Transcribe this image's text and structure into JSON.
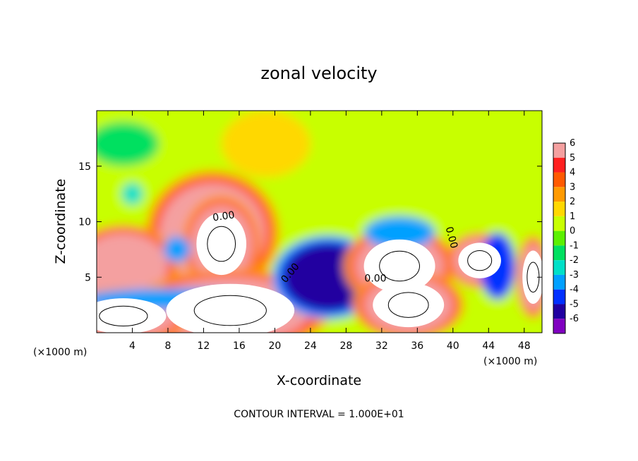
{
  "chart_data": {
    "type": "heatmap",
    "title": "zonal velocity",
    "xlabel": "X-coordinate",
    "ylabel": "Z-coordinate",
    "x_unit_note": "(×1000 m)",
    "y_unit_note": "(×1000 m)",
    "xlim": [
      0,
      50
    ],
    "ylim": [
      0,
      20
    ],
    "x_ticks": [
      4,
      8,
      12,
      16,
      20,
      24,
      28,
      32,
      36,
      40,
      44,
      48
    ],
    "y_ticks": [
      5,
      10,
      15
    ],
    "colorbar": {
      "levels": [
        6,
        5,
        4,
        3,
        2,
        1,
        0,
        -1,
        -2,
        -3,
        -4,
        -5,
        -6
      ],
      "colors": [
        "#f4a0a0",
        "#ff2020",
        "#ff5a00",
        "#ff9a00",
        "#ffd800",
        "#c8ff00",
        "#5cf000",
        "#00e060",
        "#00e0c8",
        "#00a0ff",
        "#0030ff",
        "#2000a0",
        "#8000c0"
      ]
    },
    "contour_labels": [
      "0.00",
      "0.00",
      "0.00",
      "0.00"
    ],
    "footer": "CONTOUR INTERVAL = 1.000E+01",
    "features": [
      {
        "kind": "background",
        "value": 0.8
      },
      {
        "kind": "blob",
        "cx": 13,
        "cy": 9,
        "rx": 6,
        "ry": 4.5,
        "value": 5
      },
      {
        "kind": "blob",
        "cx": 14,
        "cy": 8,
        "rx": 3.5,
        "ry": 3.5,
        "value": 7
      },
      {
        "kind": "blob",
        "cx": 3,
        "cy": 6,
        "rx": 5,
        "ry": 3,
        "value": 6
      },
      {
        "kind": "blob",
        "cx": 15,
        "cy": 2,
        "rx": 9,
        "ry": 3,
        "value": 7
      },
      {
        "kind": "blob",
        "cx": 3,
        "cy": 1.5,
        "rx": 6,
        "ry": 2,
        "value": 7
      },
      {
        "kind": "blob",
        "cx": 26,
        "cy": 5,
        "rx": 5,
        "ry": 3,
        "value": -5
      },
      {
        "kind": "blob",
        "cx": 34,
        "cy": 6,
        "rx": 5,
        "ry": 3,
        "value": 7
      },
      {
        "kind": "blob",
        "cx": 35,
        "cy": 2.5,
        "rx": 5,
        "ry": 2.5,
        "value": 7
      },
      {
        "kind": "blob",
        "cx": 43,
        "cy": 6.5,
        "rx": 3,
        "ry": 2,
        "value": 7
      },
      {
        "kind": "blob",
        "cx": 49,
        "cy": 5,
        "rx": 1.5,
        "ry": 3,
        "value": 7
      },
      {
        "kind": "blob",
        "cx": 9,
        "cy": 7.5,
        "rx": 1.5,
        "ry": 1.2,
        "value": -3
      },
      {
        "kind": "blob",
        "cx": 34,
        "cy": 9,
        "rx": 4,
        "ry": 1.5,
        "value": -3
      },
      {
        "kind": "blob",
        "cx": 4,
        "cy": 12.5,
        "rx": 1.2,
        "ry": 1,
        "value": -2.5
      },
      {
        "kind": "blob",
        "cx": 19,
        "cy": 17,
        "rx": 5,
        "ry": 3,
        "value": 2
      },
      {
        "kind": "blob",
        "cx": 3,
        "cy": 17,
        "rx": 4,
        "ry": 2,
        "value": -1.5
      },
      {
        "kind": "blob",
        "cx": 45,
        "cy": 6,
        "rx": 2,
        "ry": 3,
        "value": -4.5
      },
      {
        "kind": "blob",
        "cx": 8,
        "cy": 3,
        "rx": 10,
        "ry": 1,
        "value": -3.5
      }
    ]
  }
}
